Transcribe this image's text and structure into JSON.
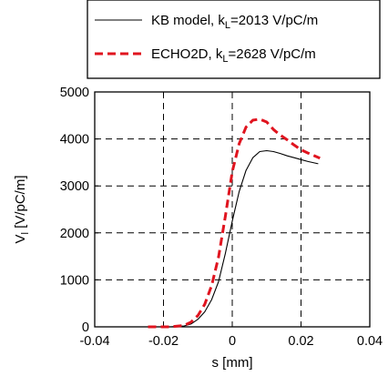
{
  "chart_data": {
    "type": "line",
    "xlabel": "s [mm]",
    "ylabel_main": "V",
    "ylabel_sub": "l",
    "ylabel_units": " [V/pC/m]",
    "xlim": [
      -0.04,
      0.04
    ],
    "ylim": [
      0,
      5000
    ],
    "grid": true,
    "legend_position": "top-right (above plot)",
    "x_ticks": [
      "-0.04",
      "-0.02",
      "0",
      "0.02",
      "0.04"
    ],
    "y_ticks": [
      "0",
      "1000",
      "2000",
      "3000",
      "4000",
      "5000"
    ],
    "series": [
      {
        "name_main": "KB model, k",
        "name_sub": "L",
        "name_rest": "=2013 V/pC/m",
        "color": "#000000",
        "style": "solid",
        "x": [
          -0.0255,
          -0.018,
          -0.014,
          -0.012,
          -0.01,
          -0.008,
          -0.006,
          -0.004,
          -0.002,
          0.0,
          0.002,
          0.004,
          0.006,
          0.008,
          0.01,
          0.012,
          0.014,
          0.016,
          0.018,
          0.02,
          0.022,
          0.025
        ],
        "y": [
          0,
          0,
          20,
          60,
          160,
          320,
          580,
          960,
          1560,
          2250,
          2880,
          3330,
          3600,
          3730,
          3750,
          3730,
          3690,
          3640,
          3600,
          3560,
          3520,
          3470
        ]
      },
      {
        "name_main": "ECHO2D, k",
        "name_sub": "L",
        "name_rest": "=2628 V/pC/m",
        "color": "#e0141f",
        "style": "dashed",
        "x": [
          -0.0245,
          -0.018,
          -0.014,
          -0.012,
          -0.01,
          -0.008,
          -0.006,
          -0.004,
          -0.002,
          0.0,
          0.002,
          0.004,
          0.006,
          0.008,
          0.01,
          0.012,
          0.014,
          0.016,
          0.018,
          0.02,
          0.022,
          0.0255
        ],
        "y": [
          0,
          0,
          30,
          100,
          240,
          480,
          880,
          1480,
          2350,
          3300,
          3900,
          4250,
          4400,
          4420,
          4360,
          4200,
          4080,
          3980,
          3870,
          3770,
          3700,
          3590
        ]
      }
    ]
  }
}
